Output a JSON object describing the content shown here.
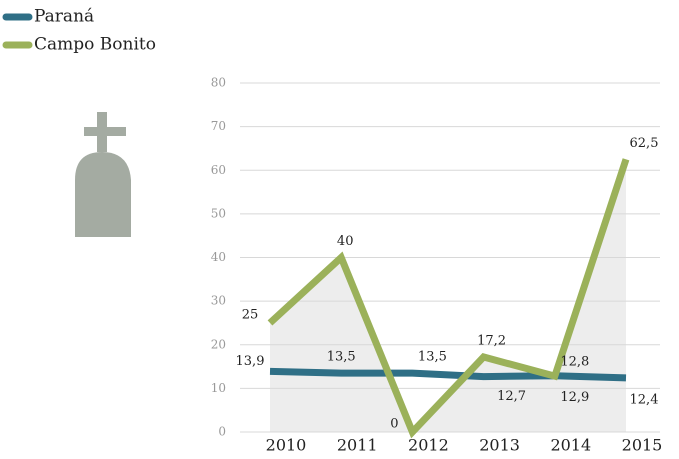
{
  "chart_data": {
    "type": "line",
    "categories": [
      "2010",
      "2011",
      "2012",
      "2013",
      "2014",
      "2015"
    ],
    "series": [
      {
        "name": "Paraná",
        "color": "#2f6f86",
        "values": [
          13.9,
          13.5,
          13.5,
          12.7,
          12.9,
          12.4
        ],
        "value_labels": [
          "13,9",
          "13,5",
          "13,5",
          "12,7",
          "12,9",
          "12,4"
        ]
      },
      {
        "name": "Campo Bonito",
        "color": "#9bb15a",
        "values": [
          25,
          40,
          0,
          17.2,
          12.8,
          62.5
        ],
        "value_labels": [
          "25",
          "40",
          "0",
          "17,2",
          "12,8",
          "62,5"
        ]
      }
    ],
    "ylim": [
      0,
      80
    ],
    "yticks": [
      0,
      10,
      20,
      30,
      40,
      50,
      60,
      70,
      80
    ],
    "grid": true,
    "legend": "top-left"
  }
}
